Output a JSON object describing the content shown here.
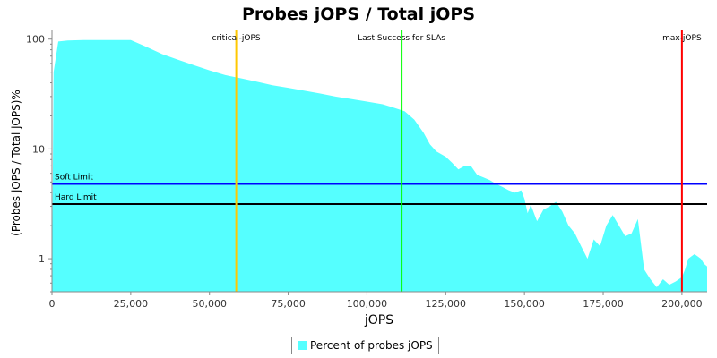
{
  "chart_data": {
    "type": "area",
    "title": "Probes jOPS / Total jOPS",
    "xlabel": "jOPS",
    "ylabel": "(Probes jOPS / Total jOPS)%",
    "xlim": [
      0,
      208000
    ],
    "ylim": [
      0.5,
      120
    ],
    "yscale": "log",
    "x_ticks": [
      0,
      25000,
      50000,
      75000,
      100000,
      125000,
      150000,
      175000,
      200000
    ],
    "x_tick_labels": [
      "0",
      "25,000",
      "50,000",
      "75,000",
      "100,000",
      "125,000",
      "150,000",
      "175,000",
      "200,000"
    ],
    "y_ticks": [
      1,
      10,
      100
    ],
    "y_tick_labels": [
      "1",
      "10",
      "100"
    ],
    "legend_position": "bottom",
    "series": [
      {
        "name": "Percent of probes jOPS",
        "color": "#55ffff",
        "x": [
          0,
          500,
          2000,
          5000,
          10000,
          15000,
          20000,
          25000,
          30000,
          35000,
          40000,
          45000,
          50000,
          55000,
          60000,
          65000,
          70000,
          75000,
          80000,
          85000,
          90000,
          95000,
          100000,
          105000,
          108000,
          110000,
          112000,
          115000,
          118000,
          120000,
          122000,
          125000,
          127000,
          129000,
          131000,
          133000,
          135000,
          137000,
          139000,
          141000,
          143000,
          145000,
          147000,
          149000,
          150000,
          151000,
          152000,
          154000,
          156000,
          158000,
          160000,
          162000,
          164000,
          166000,
          168000,
          170000,
          172000,
          174000,
          176000,
          178000,
          180000,
          182000,
          184000,
          186000,
          188000,
          190000,
          192000,
          194000,
          196000,
          198000,
          200000,
          201000,
          202000,
          203000,
          204000,
          205000,
          206000,
          207000,
          208000
        ],
        "values": [
          0.55,
          50,
          95,
          97,
          98,
          98,
          98,
          98,
          85,
          73,
          65,
          58,
          52,
          47,
          44,
          41,
          38,
          36,
          34,
          32,
          30,
          28.5,
          27,
          25.5,
          24,
          23,
          22,
          18.5,
          14,
          11,
          9.5,
          8.5,
          7.5,
          6.5,
          7,
          7,
          5.8,
          5.5,
          5.2,
          4.8,
          4.5,
          4.2,
          4.0,
          4.2,
          3.5,
          2.6,
          3.1,
          2.2,
          2.8,
          3.0,
          3.3,
          2.7,
          2.0,
          1.7,
          1.3,
          1.0,
          1.5,
          1.3,
          2.0,
          2.5,
          2.0,
          1.6,
          1.7,
          2.3,
          0.8,
          0.65,
          0.55,
          0.65,
          0.58,
          0.62,
          0.68,
          0.8,
          1.0,
          1.05,
          1.1,
          1.05,
          1.0,
          0.9,
          0.85
        ]
      }
    ],
    "horizontal_lines": [
      {
        "label": "Soft Limit",
        "value": 4.8,
        "color": "#0000ff"
      },
      {
        "label": "Hard Limit",
        "value": 3.15,
        "color": "#000000"
      }
    ],
    "vertical_lines": [
      {
        "label": "critical-jOPS",
        "value": 58500,
        "color": "#ffc800"
      },
      {
        "label": "Last Success for SLAs",
        "value": 111000,
        "color": "#00ff00"
      },
      {
        "label": "max-jOPS",
        "value": 200000,
        "color": "#ff0000"
      }
    ]
  }
}
